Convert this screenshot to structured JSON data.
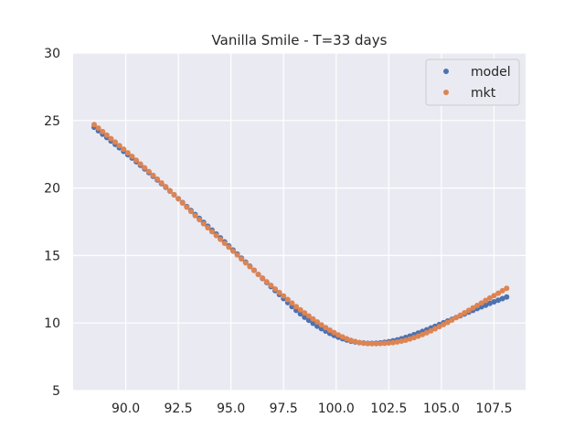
{
  "chart_data": {
    "type": "scatter",
    "title": "Vanilla Smile - T=33 days",
    "xlabel": "",
    "ylabel": "",
    "xlim": [
      87.5,
      109.0
    ],
    "ylim": [
      5,
      30
    ],
    "x_ticks": [
      "90.0",
      "92.5",
      "95.0",
      "97.5",
      "100.0",
      "102.5",
      "105.0",
      "107.5"
    ],
    "y_ticks": [
      "5",
      "10",
      "15",
      "20",
      "25",
      "30"
    ],
    "grid": true,
    "legend_position": "top-right",
    "x": [
      88.5,
      88.7,
      88.9,
      89.1,
      89.3,
      89.5,
      89.7,
      89.9,
      90.1,
      90.3,
      90.5,
      90.7,
      90.9,
      91.1,
      91.3,
      91.5,
      91.7,
      91.9,
      92.1,
      92.3,
      92.5,
      92.7,
      92.9,
      93.1,
      93.3,
      93.5,
      93.7,
      93.9,
      94.1,
      94.3,
      94.5,
      94.7,
      94.9,
      95.1,
      95.3,
      95.5,
      95.7,
      95.9,
      96.1,
      96.3,
      96.5,
      96.7,
      96.9,
      97.1,
      97.3,
      97.5,
      97.7,
      97.9,
      98.1,
      98.3,
      98.5,
      98.7,
      98.9,
      99.1,
      99.3,
      99.5,
      99.7,
      99.9,
      100.1,
      100.3,
      100.5,
      100.7,
      100.9,
      101.1,
      101.3,
      101.5,
      101.7,
      101.9,
      102.1,
      102.3,
      102.5,
      102.7,
      102.9,
      103.1,
      103.3,
      103.5,
      103.7,
      103.9,
      104.1,
      104.3,
      104.5,
      104.7,
      104.9,
      105.1,
      105.3,
      105.5,
      105.7,
      105.9,
      106.1,
      106.3,
      106.5,
      106.7,
      106.9,
      107.1,
      107.3,
      107.5,
      107.7,
      107.9,
      108.1
    ],
    "series": [
      {
        "name": "model",
        "color": "#4c72b0",
        "values": [
          24.5,
          24.24,
          23.99,
          23.74,
          23.48,
          23.23,
          22.98,
          22.72,
          22.47,
          22.22,
          21.95,
          21.68,
          21.41,
          21.14,
          20.87,
          20.6,
          20.33,
          20.06,
          19.78,
          19.5,
          19.21,
          18.92,
          18.63,
          18.34,
          18.04,
          17.75,
          17.46,
          17.17,
          16.88,
          16.59,
          16.31,
          16.01,
          15.71,
          15.41,
          15.11,
          14.81,
          14.51,
          14.21,
          13.91,
          13.6,
          13.3,
          13.0,
          12.7,
          12.4,
          12.11,
          11.81,
          11.51,
          11.22,
          10.94,
          10.68,
          10.43,
          10.2,
          9.98,
          9.77,
          9.58,
          9.4,
          9.23,
          9.08,
          8.95,
          8.84,
          8.74,
          8.66,
          8.6,
          8.55,
          8.52,
          8.5,
          8.5,
          8.51,
          8.53,
          8.57,
          8.62,
          8.68,
          8.75,
          8.84,
          8.93,
          9.03,
          9.14,
          9.26,
          9.38,
          9.5,
          9.63,
          9.76,
          9.89,
          10.02,
          10.15,
          10.28,
          10.41,
          10.54,
          10.67,
          10.81,
          10.94,
          11.07,
          11.2,
          11.32,
          11.45,
          11.57,
          11.69,
          11.81,
          11.93
        ]
      },
      {
        "name": "mkt",
        "color": "#dd8452",
        "values": [
          24.7,
          24.44,
          24.18,
          23.92,
          23.66,
          23.4,
          23.14,
          22.88,
          22.61,
          22.34,
          22.06,
          21.78,
          21.5,
          21.22,
          20.94,
          20.66,
          20.38,
          20.1,
          19.81,
          19.51,
          19.2,
          18.89,
          18.58,
          18.27,
          17.96,
          17.66,
          17.36,
          17.06,
          16.77,
          16.48,
          16.2,
          15.91,
          15.62,
          15.33,
          15.04,
          14.75,
          14.46,
          14.17,
          13.89,
          13.6,
          13.33,
          13.05,
          12.79,
          12.52,
          12.26,
          12.0,
          11.74,
          11.48,
          11.22,
          10.98,
          10.75,
          10.52,
          10.3,
          10.08,
          9.86,
          9.66,
          9.47,
          9.29,
          9.12,
          8.97,
          8.84,
          8.72,
          8.63,
          8.56,
          8.51,
          8.48,
          8.47,
          8.47,
          8.48,
          8.5,
          8.52,
          8.55,
          8.6,
          8.66,
          8.73,
          8.82,
          8.92,
          9.03,
          9.15,
          9.28,
          9.42,
          9.57,
          9.73,
          9.89,
          10.05,
          10.22,
          10.4,
          10.58,
          10.76,
          10.94,
          11.12,
          11.3,
          11.48,
          11.67,
          11.85,
          12.03,
          12.21,
          12.39,
          12.57
        ]
      }
    ]
  }
}
